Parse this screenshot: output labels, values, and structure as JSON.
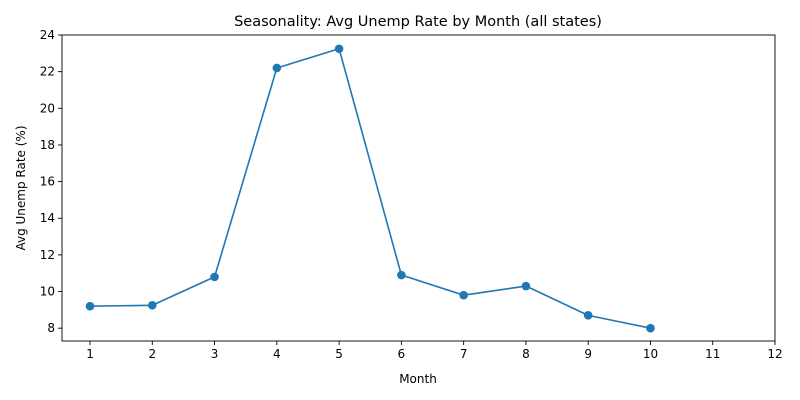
{
  "chart_data": {
    "type": "line",
    "title": "Seasonality: Avg Unemp Rate by Month (all states)",
    "xlabel": "Month",
    "ylabel": "Avg Unemp Rate (%)",
    "x": [
      1,
      2,
      3,
      4,
      5,
      6,
      7,
      8,
      9,
      10
    ],
    "series": [
      {
        "values": [
          9.2,
          9.25,
          10.8,
          22.2,
          23.25,
          10.9,
          9.8,
          10.3,
          8.7,
          8.0
        ],
        "color": "#1f77b4",
        "marker": "circle"
      }
    ],
    "xlim": [
      0.55,
      12.0
    ],
    "ylim": [
      7.3,
      24.0
    ],
    "xticks": [
      1,
      2,
      3,
      4,
      5,
      6,
      7,
      8,
      9,
      10,
      11,
      12
    ],
    "yticks": [
      8,
      10,
      12,
      14,
      16,
      18,
      20,
      22,
      24
    ],
    "grid": false,
    "legend": "none"
  }
}
